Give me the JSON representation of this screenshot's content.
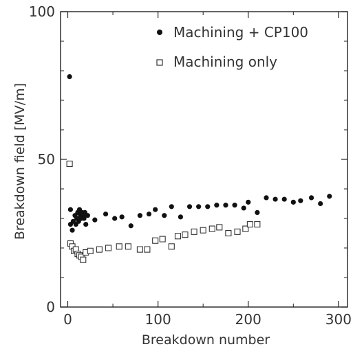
{
  "chart_data": {
    "type": "scatter",
    "xlabel": "Breakdown number",
    "ylabel": "Breakdown field [MV/m]",
    "xlim": [
      -8,
      310
    ],
    "ylim": [
      0,
      100
    ],
    "x_ticks": [
      0,
      100,
      200,
      300
    ],
    "y_ticks": [
      0,
      50,
      100
    ],
    "grid": false,
    "legend_position": "top-right",
    "series": [
      {
        "name": "Machining + CP100",
        "marker": "filled-circle",
        "color": "#111111",
        "points": [
          [
            2,
            78
          ],
          [
            3,
            33
          ],
          [
            3,
            28
          ],
          [
            5,
            26
          ],
          [
            6,
            29
          ],
          [
            8,
            31
          ],
          [
            9,
            28
          ],
          [
            10,
            30
          ],
          [
            11,
            32
          ],
          [
            12,
            29
          ],
          [
            13,
            33
          ],
          [
            14,
            31
          ],
          [
            15,
            30
          ],
          [
            16,
            32
          ],
          [
            17,
            31
          ],
          [
            18,
            30
          ],
          [
            19,
            32
          ],
          [
            20,
            28
          ],
          [
            22,
            31
          ],
          [
            30,
            29.5
          ],
          [
            42,
            31.5
          ],
          [
            52,
            30
          ],
          [
            60,
            30.5
          ],
          [
            70,
            27.5
          ],
          [
            80,
            31
          ],
          [
            90,
            31.5
          ],
          [
            97,
            33
          ],
          [
            107,
            31
          ],
          [
            115,
            34
          ],
          [
            125,
            30.5
          ],
          [
            135,
            34
          ],
          [
            145,
            34
          ],
          [
            155,
            34
          ],
          [
            165,
            34.5
          ],
          [
            175,
            34.5
          ],
          [
            185,
            34.5
          ],
          [
            195,
            33.5
          ],
          [
            200,
            35.5
          ],
          [
            210,
            32
          ],
          [
            220,
            37
          ],
          [
            230,
            36.5
          ],
          [
            240,
            36.5
          ],
          [
            250,
            35.5
          ],
          [
            258,
            36
          ],
          [
            270,
            37
          ],
          [
            280,
            35
          ],
          [
            290,
            37.5
          ]
        ]
      },
      {
        "name": "Machining only",
        "marker": "open-square",
        "color": "#333333",
        "points": [
          [
            2,
            48.5
          ],
          [
            3,
            21.5
          ],
          [
            5,
            20.5
          ],
          [
            7,
            19
          ],
          [
            9,
            19.5
          ],
          [
            11,
            18
          ],
          [
            13,
            17.5
          ],
          [
            15,
            17
          ],
          [
            17,
            16
          ],
          [
            20,
            18.5
          ],
          [
            25,
            19
          ],
          [
            35,
            19.5
          ],
          [
            45,
            20
          ],
          [
            57,
            20.5
          ],
          [
            67,
            20.5
          ],
          [
            80,
            19.5
          ],
          [
            88,
            19.5
          ],
          [
            97,
            22.5
          ],
          [
            105,
            23
          ],
          [
            115,
            20.5
          ],
          [
            122,
            24
          ],
          [
            130,
            24.5
          ],
          [
            140,
            25.5
          ],
          [
            150,
            26
          ],
          [
            160,
            26.5
          ],
          [
            168,
            27
          ],
          [
            178,
            25
          ],
          [
            188,
            25.5
          ],
          [
            197,
            26.5
          ],
          [
            202,
            28
          ],
          [
            210,
            28
          ]
        ]
      }
    ]
  }
}
